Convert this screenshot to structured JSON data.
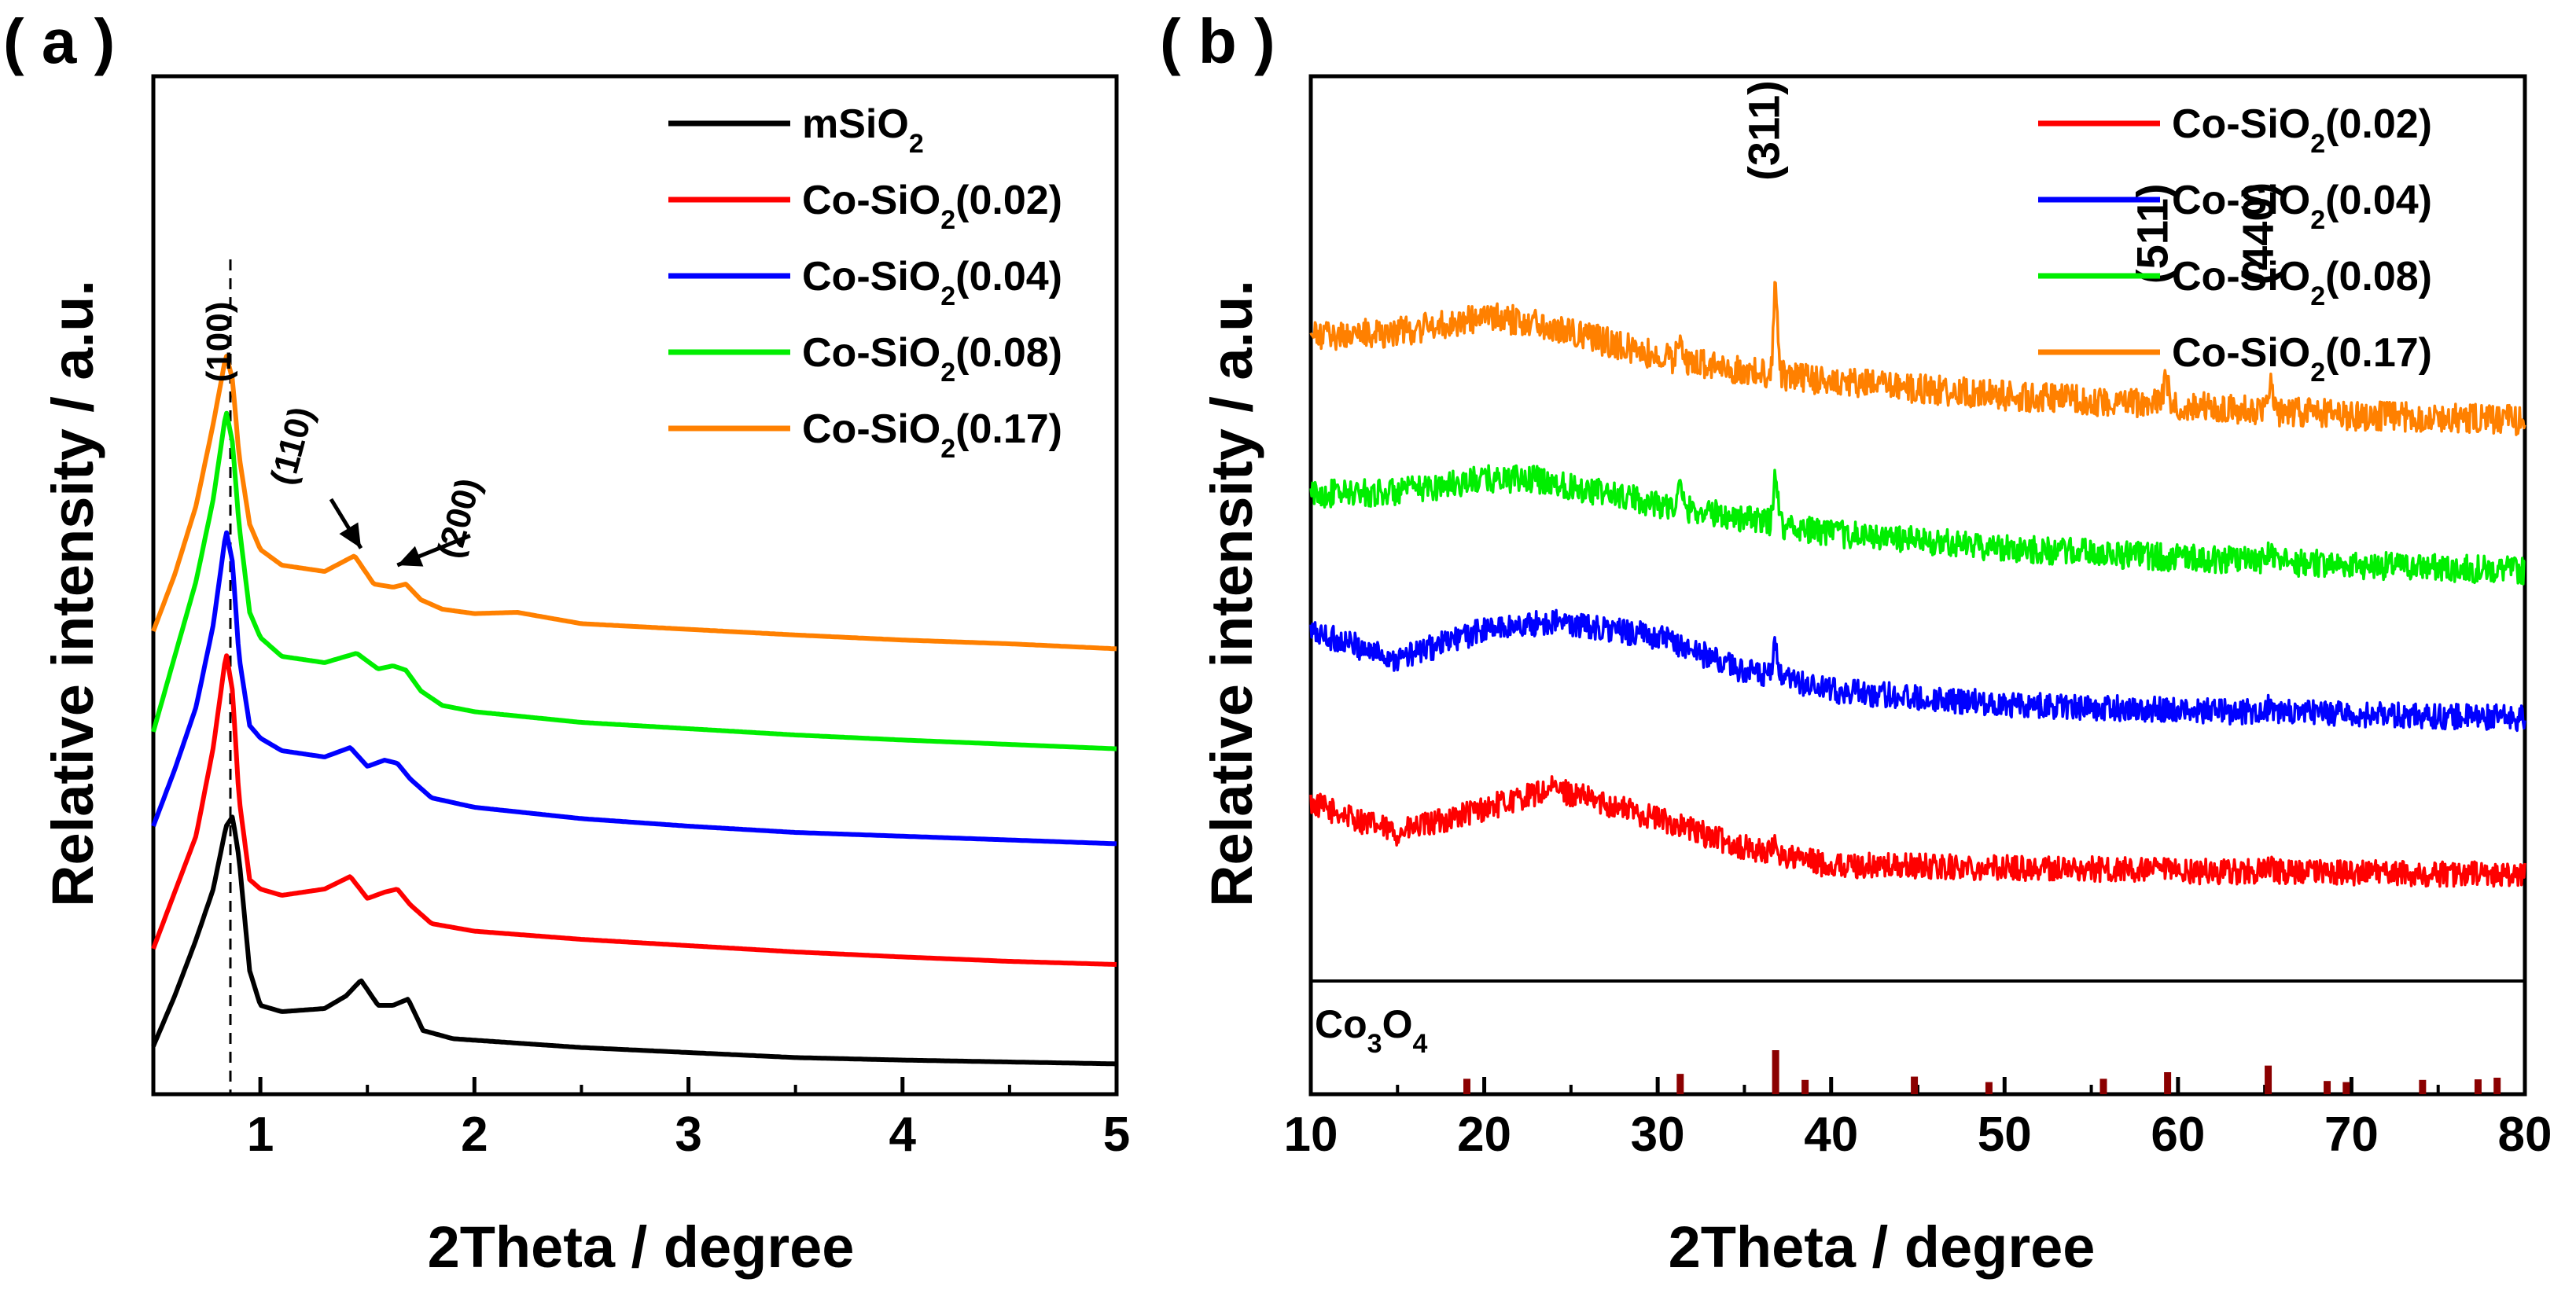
{
  "chart_data": [
    {
      "panel_label": "( a )",
      "type": "line",
      "title": "",
      "xlabel": "2Theta / degree",
      "ylabel": "Relative intensity / a.u.",
      "xlim": [
        0.5,
        5
      ],
      "ylim": [
        0,
        10
      ],
      "x_ticks": [
        1,
        2,
        3,
        4,
        5
      ],
      "x_tick_labels": [
        "1",
        "2",
        "3",
        "4",
        "5"
      ],
      "legend_position": "top-right",
      "series": [
        {
          "name": "mSiO",
          "subscript": "2",
          "color": "#000000",
          "offset": 0.0,
          "x": [
            0.5,
            0.6,
            0.7,
            0.78,
            0.84,
            0.87,
            0.9,
            0.95,
            1.0,
            1.1,
            1.3,
            1.4,
            1.47,
            1.55,
            1.62,
            1.69,
            1.76,
            1.9,
            2.2,
            2.5,
            3.0,
            3.5,
            4.0,
            4.5,
            5.0
          ],
          "y": [
            0.3,
            1.1,
            2.0,
            2.8,
            3.8,
            3.95,
            3.3,
            1.5,
            0.95,
            0.85,
            0.9,
            1.1,
            1.35,
            0.95,
            0.95,
            1.05,
            0.55,
            0.42,
            0.35,
            0.28,
            0.2,
            0.12,
            0.08,
            0.05,
            0.02
          ]
        },
        {
          "name": "Co-SiO",
          "subscript": "2",
          "suffix": "(0.02)",
          "color": "#ff0000",
          "offset": 1.55,
          "x": [
            0.5,
            0.6,
            0.7,
            0.78,
            0.84,
            0.87,
            0.9,
            0.95,
            1.0,
            1.1,
            1.3,
            1.42,
            1.5,
            1.58,
            1.64,
            1.7,
            1.8,
            2.0,
            2.5,
            3.0,
            3.5,
            4.0,
            4.5,
            5.0
          ],
          "y": [
            0.3,
            1.2,
            2.1,
            3.5,
            5.0,
            4.4,
            2.7,
            1.4,
            1.25,
            1.15,
            1.25,
            1.45,
            1.1,
            1.2,
            1.25,
            1.0,
            0.7,
            0.58,
            0.45,
            0.35,
            0.25,
            0.17,
            0.1,
            0.05
          ]
        },
        {
          "name": "Co-SiO",
          "subscript": "2",
          "suffix": "(0.04)",
          "color": "#0000ff",
          "offset": 3.5,
          "x": [
            0.5,
            0.6,
            0.7,
            0.78,
            0.84,
            0.87,
            0.9,
            0.95,
            1.0,
            1.1,
            1.3,
            1.42,
            1.5,
            1.58,
            1.64,
            1.7,
            1.8,
            2.0,
            2.5,
            3.0,
            3.5,
            4.0,
            4.5,
            5.0
          ],
          "y": [
            0.3,
            1.2,
            2.2,
            3.5,
            5.0,
            4.5,
            3.0,
            1.9,
            1.7,
            1.5,
            1.4,
            1.55,
            1.25,
            1.35,
            1.3,
            1.05,
            0.75,
            0.6,
            0.42,
            0.3,
            0.2,
            0.14,
            0.08,
            0.02
          ]
        },
        {
          "name": "Co-SiO",
          "subscript": "2",
          "suffix": "(0.08)",
          "color": "#00ee00",
          "offset": 5.0,
          "x": [
            0.5,
            0.6,
            0.7,
            0.78,
            0.84,
            0.87,
            0.9,
            0.95,
            1.0,
            1.1,
            1.3,
            1.45,
            1.55,
            1.62,
            1.68,
            1.75,
            1.85,
            2.0,
            2.5,
            3.0,
            3.5,
            4.0,
            4.5,
            5.0
          ],
          "y": [
            0.3,
            1.5,
            2.7,
            4.0,
            5.4,
            4.9,
            3.6,
            2.2,
            1.8,
            1.5,
            1.4,
            1.55,
            1.3,
            1.35,
            1.28,
            0.95,
            0.72,
            0.62,
            0.45,
            0.35,
            0.25,
            0.17,
            0.1,
            0.03
          ]
        },
        {
          "name": "Co-SiO",
          "subscript": "2",
          "suffix": "(0.17)",
          "color": "#ff8000",
          "offset": 6.6,
          "x": [
            0.5,
            0.6,
            0.7,
            0.78,
            0.84,
            0.87,
            0.9,
            0.95,
            1.0,
            1.1,
            1.3,
            1.44,
            1.53,
            1.62,
            1.68,
            1.75,
            1.85,
            2.0,
            2.2,
            2.5,
            3.0,
            3.5,
            4.0,
            4.5,
            5.0
          ],
          "y": [
            0.3,
            1.2,
            2.3,
            3.6,
            4.7,
            4.3,
            3.1,
            2.0,
            1.6,
            1.35,
            1.25,
            1.5,
            1.05,
            1.0,
            1.05,
            0.8,
            0.65,
            0.58,
            0.6,
            0.42,
            0.33,
            0.24,
            0.16,
            0.1,
            0.02
          ]
        }
      ],
      "annotations": [
        {
          "text": "(100)",
          "x": 0.86,
          "y": 11.5,
          "rotation": -90
        },
        {
          "text": "(110)",
          "x": 1.2,
          "y": 9.8,
          "rotation": -75
        },
        {
          "text": "(200)",
          "x": 1.98,
          "y": 8.65,
          "rotation": -75
        }
      ],
      "arrows": [
        {
          "from": [
            1.33,
            9.0
          ],
          "to": [
            1.47,
            8.22
          ]
        },
        {
          "from": [
            1.98,
            8.42
          ],
          "to": [
            1.64,
            7.95
          ]
        }
      ],
      "reference_line": {
        "x": 0.86,
        "style": "dashed"
      }
    },
    {
      "panel_label": "( b )",
      "type": "line",
      "title": "",
      "xlabel": "2Theta / degree",
      "ylabel": "Relative intensity / a.u.",
      "xlim": [
        10,
        80
      ],
      "ylim": [
        0,
        10
      ],
      "x_ticks": [
        10,
        20,
        30,
        40,
        50,
        60,
        70,
        80
      ],
      "x_tick_labels": [
        "10",
        "20",
        "30",
        "40",
        "50",
        "60",
        "70",
        "80"
      ],
      "legend_position": "top-right",
      "series": [
        {
          "name": "Co-SiO",
          "subscript": "2",
          "suffix": "(0.02)",
          "color": "#ff0000",
          "offset": 0.8,
          "noise": 0.13,
          "peaks": [
            [
              36.8,
              0.12
            ],
            [
              65.3,
              0.05
            ]
          ],
          "x": [
            10,
            15,
            20,
            24,
            30,
            35,
            40,
            50,
            60,
            70,
            80
          ],
          "y": [
            0.75,
            0.45,
            0.7,
            0.9,
            0.6,
            0.3,
            0.12,
            0.1,
            0.06,
            0.05,
            0.02
          ]
        },
        {
          "name": "Co-SiO",
          "subscript": "2",
          "suffix": "(0.04)",
          "color": "#0000ff",
          "offset": 2.4,
          "noise": 0.13,
          "peaks": [
            [
              36.8,
              0.35
            ],
            [
              65.3,
              0.08
            ]
          ],
          "x": [
            10,
            15,
            20,
            24,
            30,
            35,
            40,
            50,
            60,
            70,
            80
          ],
          "y": [
            0.9,
            0.62,
            0.92,
            1.0,
            0.85,
            0.5,
            0.3,
            0.16,
            0.1,
            0.06,
            0.02
          ]
        },
        {
          "name": "Co-SiO",
          "subscript": "2",
          "suffix": "(0.08)",
          "color": "#00ee00",
          "offset": 3.9,
          "noise": 0.14,
          "peaks": [
            [
              31.3,
              0.2
            ],
            [
              36.8,
              0.55
            ],
            [
              65.3,
              0.12
            ]
          ],
          "x": [
            10,
            15,
            20,
            23,
            30,
            35,
            40,
            50,
            60,
            70,
            80
          ],
          "y": [
            0.8,
            0.82,
            0.95,
            0.95,
            0.7,
            0.55,
            0.4,
            0.25,
            0.15,
            0.08,
            0.02
          ]
        },
        {
          "name": "Co-SiO",
          "subscript": "2",
          "suffix": "(0.17)",
          "color": "#ff8000",
          "offset": 5.4,
          "noise": 0.15,
          "peaks": [
            [
              31.3,
              0.25
            ],
            [
              36.8,
              0.95
            ],
            [
              59.3,
              0.35
            ],
            [
              65.3,
              0.3
            ]
          ],
          "x": [
            10,
            15,
            20,
            23,
            30,
            35,
            40,
            50,
            60,
            70,
            80
          ],
          "y": [
            0.9,
            0.95,
            1.1,
            1.05,
            0.7,
            0.55,
            0.45,
            0.3,
            0.2,
            0.1,
            0.05
          ]
        }
      ],
      "annotations": [
        {
          "text": "(311)",
          "x": 37.0,
          "y": 8.4,
          "rotation": -90
        },
        {
          "text": "(511)",
          "x": 59.4,
          "y": 7.35,
          "rotation": -90
        },
        {
          "text": "(440)",
          "x": 65.5,
          "y": 7.35,
          "rotation": -90
        }
      ],
      "reference": {
        "name": "Co",
        "subscript": "3",
        "suffix": "O",
        "subscript2": "4",
        "color": "#8b0000",
        "peaks": [
          {
            "x": 19.0,
            "h": 0.28
          },
          {
            "x": 31.3,
            "h": 0.37
          },
          {
            "x": 36.8,
            "h": 0.8
          },
          {
            "x": 38.5,
            "h": 0.26
          },
          {
            "x": 44.8,
            "h": 0.32
          },
          {
            "x": 49.1,
            "h": 0.22
          },
          {
            "x": 55.7,
            "h": 0.28
          },
          {
            "x": 59.4,
            "h": 0.4
          },
          {
            "x": 65.2,
            "h": 0.52
          },
          {
            "x": 68.6,
            "h": 0.24
          },
          {
            "x": 69.7,
            "h": 0.22
          },
          {
            "x": 74.1,
            "h": 0.26
          },
          {
            "x": 77.3,
            "h": 0.27
          },
          {
            "x": 78.4,
            "h": 0.3
          }
        ]
      }
    }
  ]
}
